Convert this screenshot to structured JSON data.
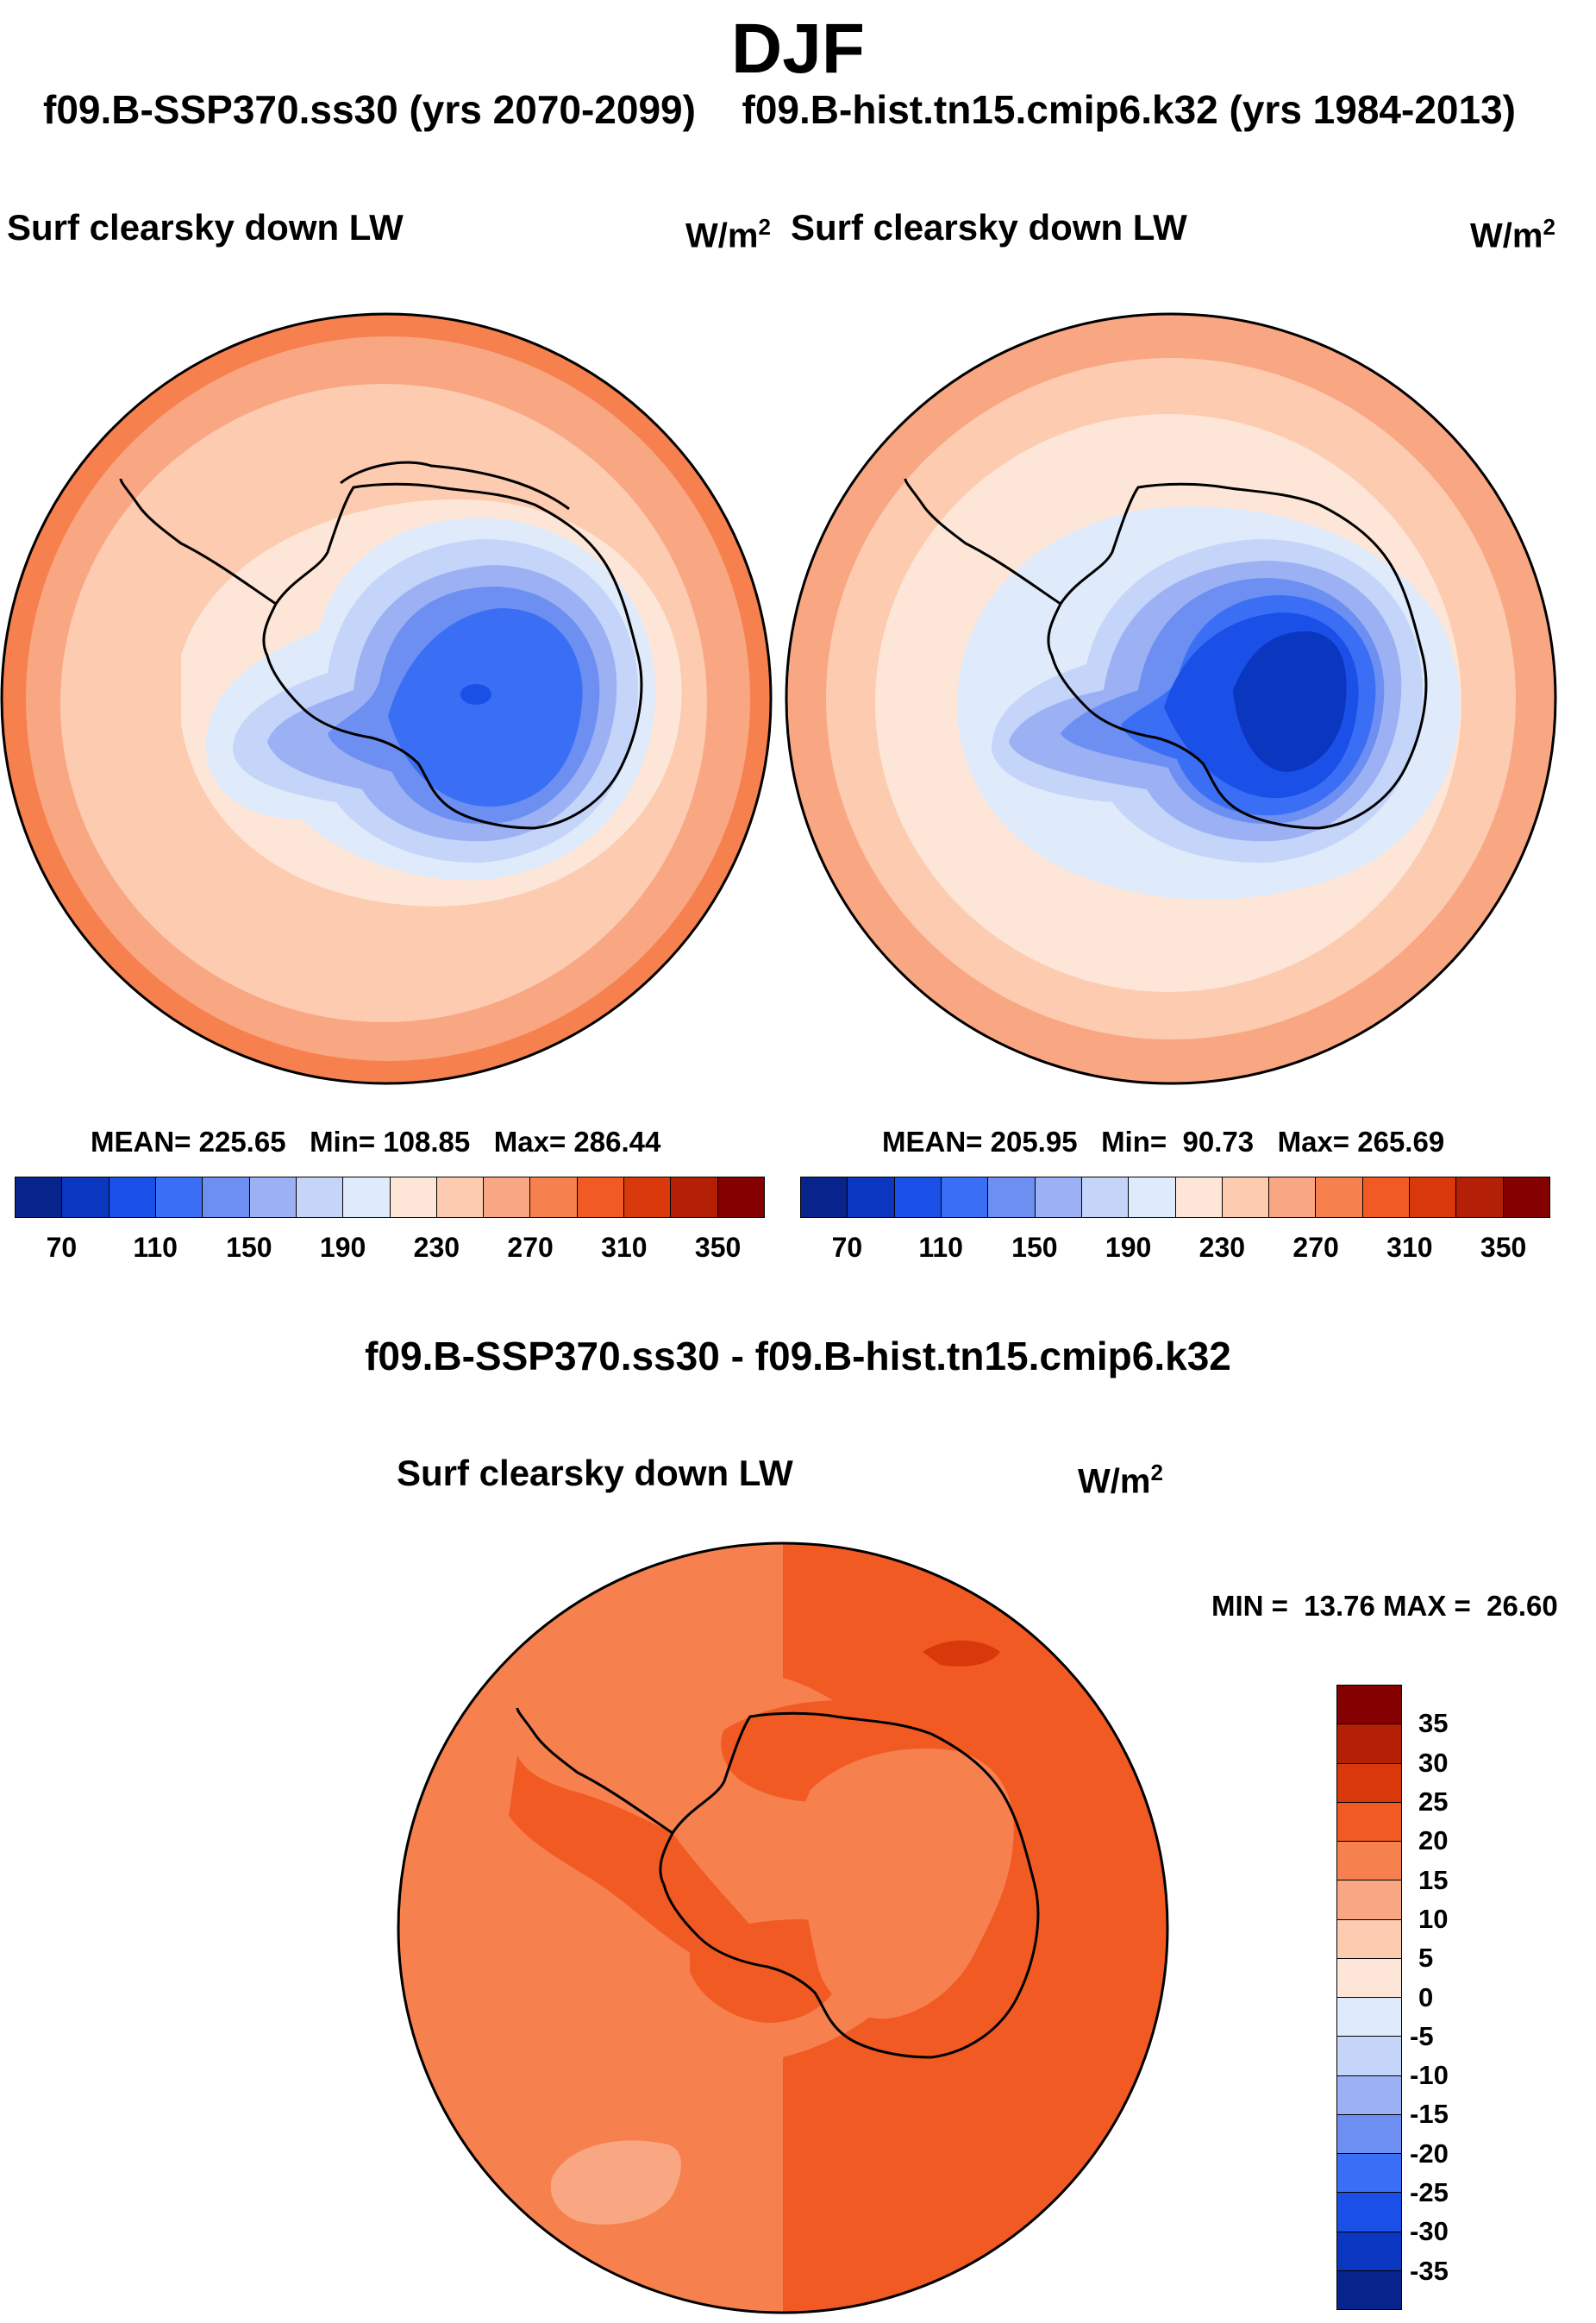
{
  "season": "DJF",
  "header": {
    "test_case": "f09.B-SSP370.ss30 (yrs 2070-2099)",
    "control_case": "f09.B-hist.tn15.cmip6.k32 (yrs 1984-2013)"
  },
  "diff_title": "f09.B-SSP370.ss30 - f09.B-hist.tn15.cmip6.k32",
  "variable": "Surf clearsky down LW",
  "units_base": "W/m",
  "units_exp": "2",
  "chart_data": [
    {
      "type": "heatmap",
      "projection": "south-polar-stereographic",
      "title": "Surf clearsky down LW",
      "units": "W/m2",
      "stats": {
        "mean_label": "MEAN=",
        "mean": "225.65",
        "min_label": "Min=",
        "min": "108.85",
        "max_label": "Max=",
        "max": "286.44"
      },
      "colorbar": {
        "levels": [
          70,
          90,
          110,
          130,
          150,
          170,
          190,
          210,
          230,
          250,
          270,
          290,
          310,
          330,
          350
        ],
        "tick_labels": [
          "70",
          "110",
          "150",
          "190",
          "230",
          "270",
          "310",
          "350"
        ],
        "colors": [
          "#08248c",
          "#0a36c0",
          "#1a50e8",
          "#3a6ef5",
          "#6d8ff2",
          "#9bb1f4",
          "#c5d4f9",
          "#dfeafb",
          "#fde6d7",
          "#fccbb0",
          "#f9a683",
          "#f6804e",
          "#f25a24",
          "#d9380b",
          "#b42005",
          "#850000"
        ]
      }
    },
    {
      "type": "heatmap",
      "projection": "south-polar-stereographic",
      "title": "Surf clearsky down LW",
      "units": "W/m2",
      "stats": {
        "mean_label": "MEAN=",
        "mean": "205.95",
        "min_label": "Min=",
        "min": "90.73",
        "max_label": "Max=",
        "max": "265.69"
      },
      "colorbar": {
        "levels": [
          70,
          90,
          110,
          130,
          150,
          170,
          190,
          210,
          230,
          250,
          270,
          290,
          310,
          330,
          350
        ],
        "tick_labels": [
          "70",
          "110",
          "150",
          "190",
          "230",
          "270",
          "310",
          "350"
        ],
        "colors": [
          "#08248c",
          "#0a36c0",
          "#1a50e8",
          "#3a6ef5",
          "#6d8ff2",
          "#9bb1f4",
          "#c5d4f9",
          "#dfeafb",
          "#fde6d7",
          "#fccbb0",
          "#f9a683",
          "#f6804e",
          "#f25a24",
          "#d9380b",
          "#b42005",
          "#850000"
        ]
      }
    },
    {
      "type": "heatmap",
      "projection": "south-polar-stereographic",
      "title": "Surf clearsky down LW",
      "units": "W/m2",
      "stats": {
        "min_label": "MIN =",
        "min": "13.76",
        "max_label": "MAX =",
        "max": "26.60"
      },
      "colorbar": {
        "levels": [
          35,
          30,
          25,
          20,
          15,
          10,
          5,
          0,
          -5,
          -10,
          -15,
          -20,
          -25,
          -30,
          -35
        ],
        "tick_labels": [
          "35",
          "30",
          "25",
          "20",
          "15",
          "10",
          "5",
          "0",
          "-5",
          "-10",
          "-15",
          "-20",
          "-25",
          "-30",
          "-35"
        ],
        "colors": [
          "#850000",
          "#b42005",
          "#d9380b",
          "#f25a24",
          "#f6804e",
          "#f9a683",
          "#fccbb0",
          "#fde6d7",
          "#dfeafb",
          "#c5d4f9",
          "#9bb1f4",
          "#6d8ff2",
          "#3a6ef5",
          "#1a50e8",
          "#0a36c0",
          "#08248c"
        ]
      }
    }
  ]
}
